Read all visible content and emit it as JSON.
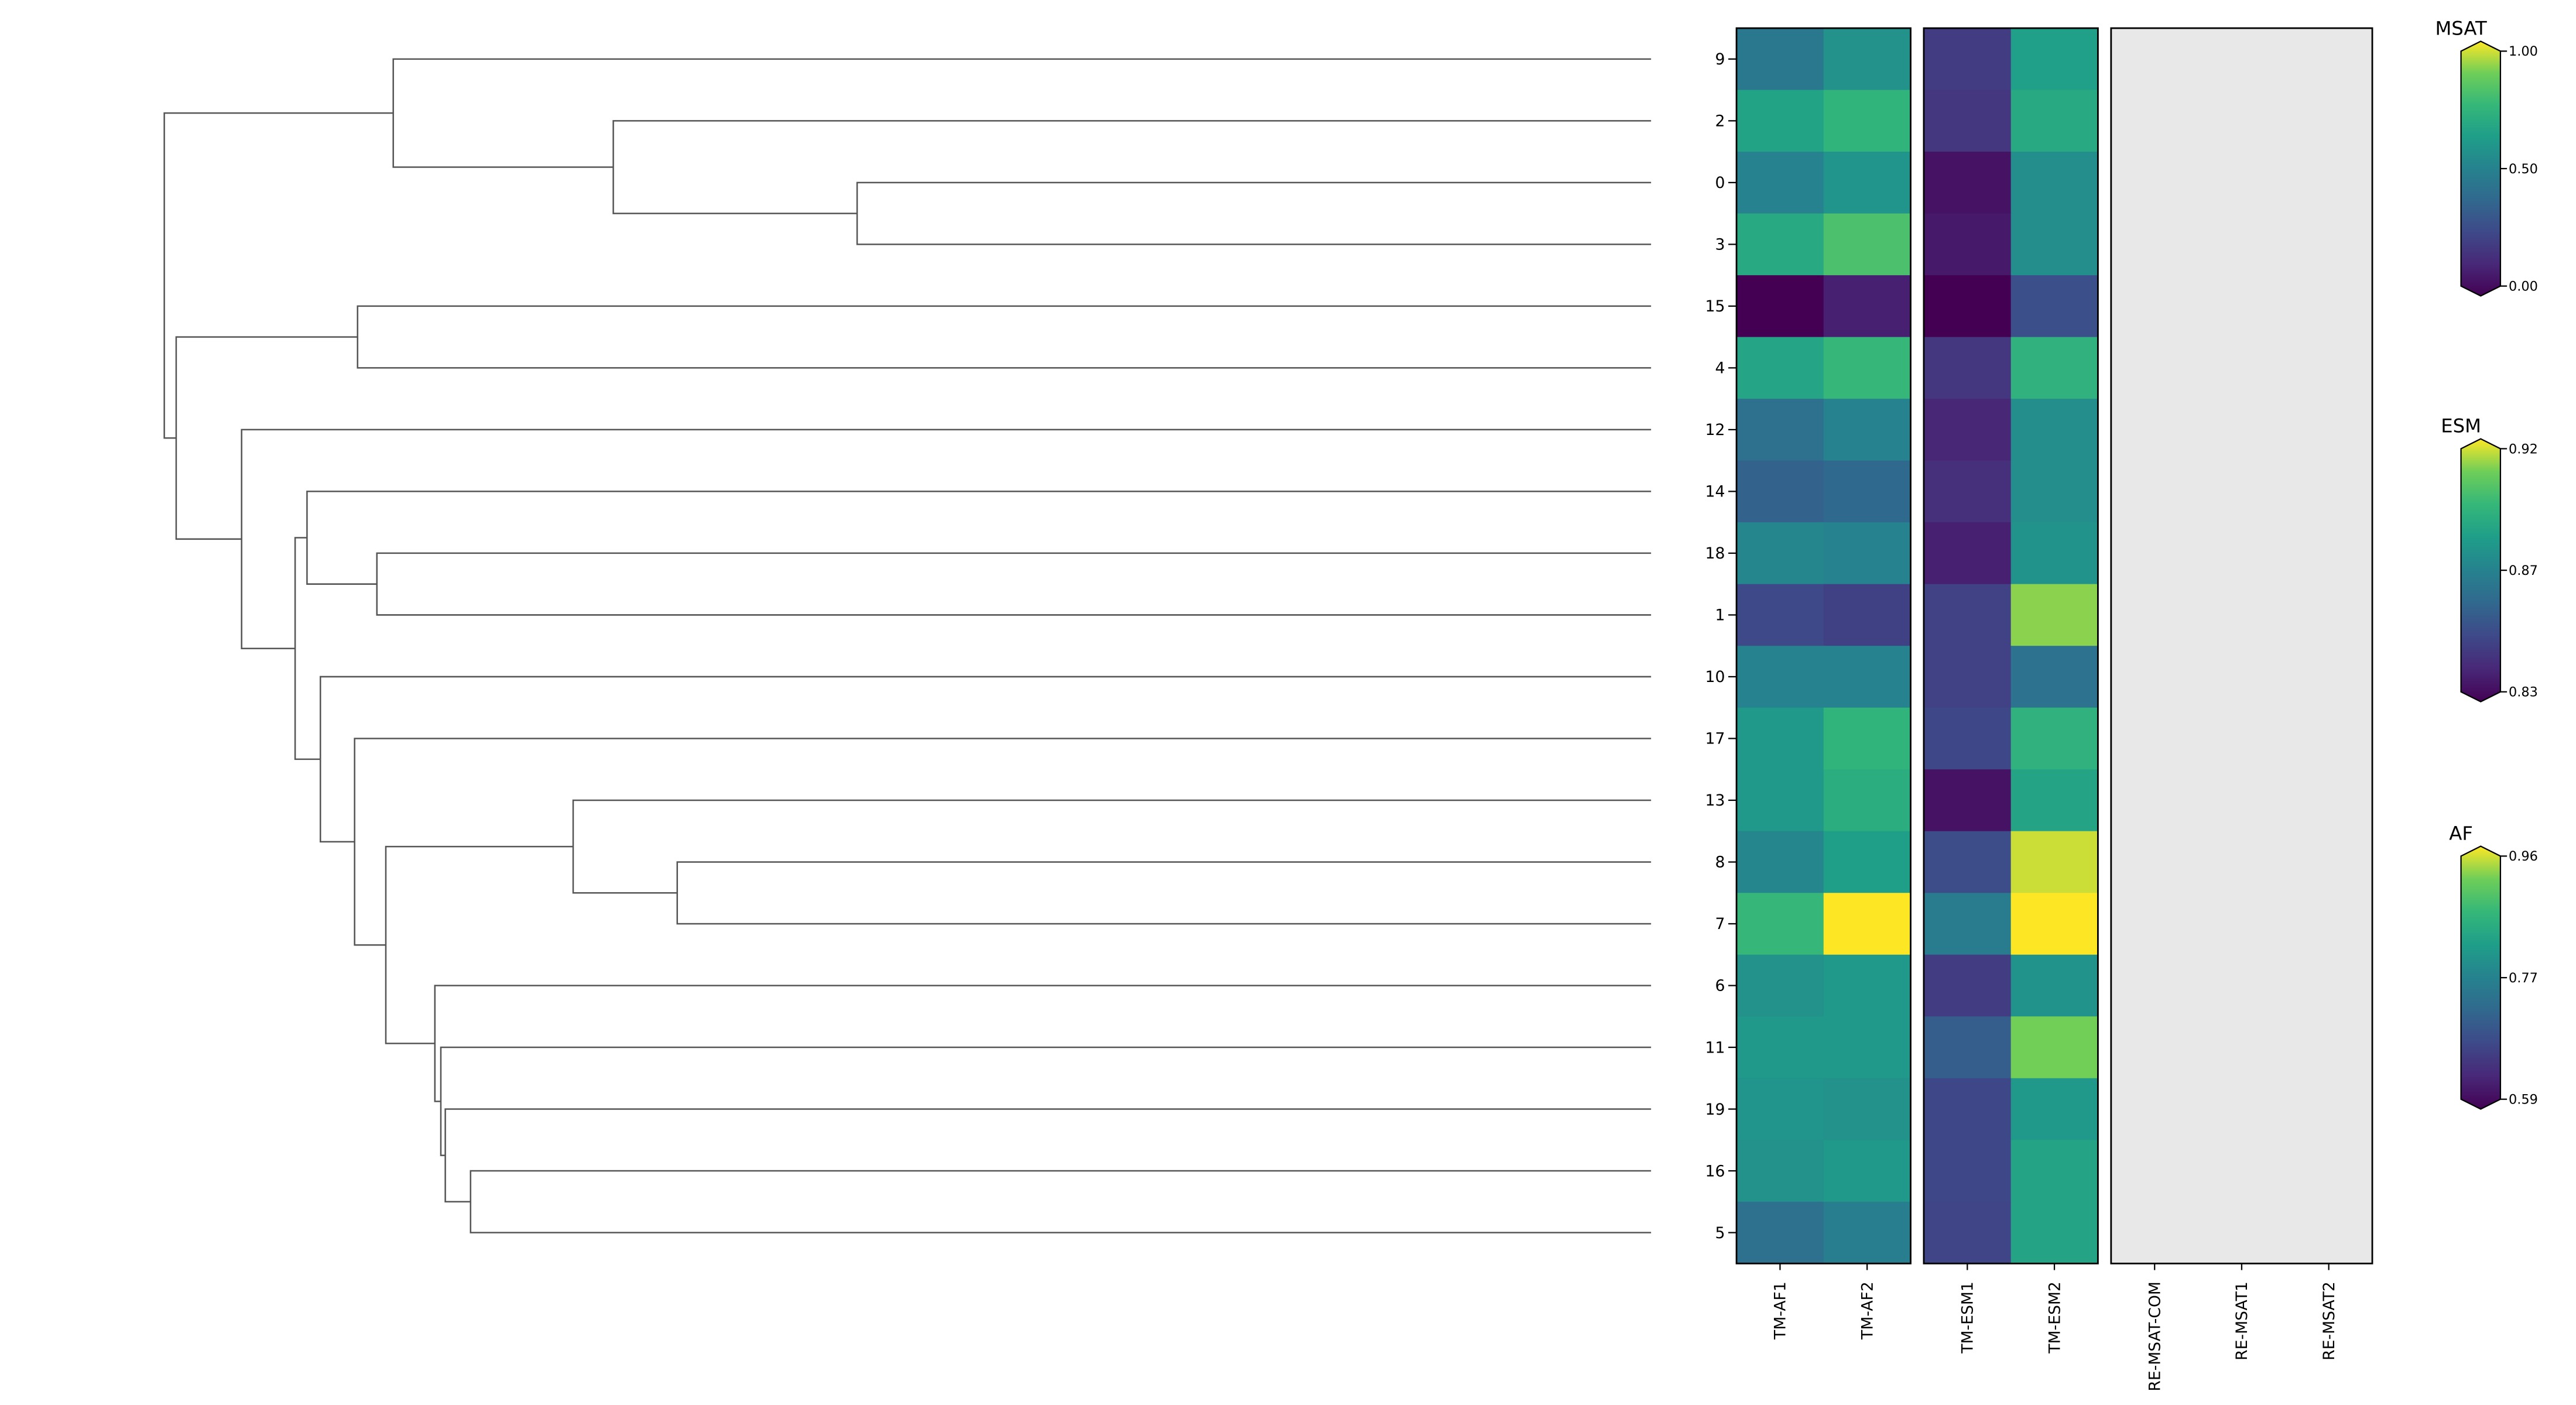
{
  "chart_data": {
    "type": "heatmap",
    "title": "",
    "row_labels": [
      "9",
      "2",
      "0",
      "3",
      "15",
      "4",
      "12",
      "14",
      "18",
      "1",
      "10",
      "17",
      "13",
      "8",
      "7",
      "6",
      "11",
      "19",
      "16",
      "5"
    ],
    "dendrogram": {
      "d": 1.0,
      "c": [
        {
          "d": 0.846,
          "c": [
            "9",
            {
              "d": 0.698,
              "c": [
                "2",
                {
                  "d": 0.534,
                  "c": [
                    "0",
                    "3"
                  ]
                }
              ]
            }
          ]
        },
        {
          "d": 0.992,
          "c": [
            {
              "d": 0.87,
              "c": [
                "15",
                "4"
              ]
            },
            {
              "d": 0.948,
              "c": [
                "12",
                {
                  "d": 0.912,
                  "c": [
                    {
                      "d": 0.904,
                      "c": [
                        "14",
                        {
                          "d": 0.857,
                          "c": [
                            "18",
                            "1"
                          ]
                        }
                      ]
                    },
                    {
                      "d": 0.895,
                      "c": [
                        "10",
                        {
                          "d": 0.872,
                          "c": [
                            "17",
                            {
                              "d": 0.851,
                              "c": [
                                {
                                  "d": 0.725,
                                  "c": [
                                    "13",
                                    {
                                      "d": 0.655,
                                      "c": [
                                        "8",
                                        "7"
                                      ]
                                    }
                                  ]
                                },
                                {
                                  "d": 0.818,
                                  "c": [
                                    "6",
                                    {
                                      "d": 0.814,
                                      "c": [
                                        "11",
                                        {
                                          "d": 0.811,
                                          "c": [
                                            "19",
                                            {
                                              "d": 0.794,
                                              "c": [
                                                "16",
                                                "5"
                                              ]
                                            }
                                          ]
                                        }
                                      ]
                                    }
                                  ]
                                }
                              ]
                            }
                          ]
                        }
                      ]
                    }
                  ]
                }
              ]
            }
          ]
        }
      ]
    },
    "panels": [
      {
        "name": "AF",
        "columns": [
          "TM-AF1",
          "TM-AF2"
        ],
        "range": [
          0.59,
          0.96
        ],
        "values": [
          [
            0.757,
            0.801
          ],
          [
            0.83,
            0.86
          ],
          [
            0.775,
            0.805
          ],
          [
            0.842,
            0.886
          ],
          [
            0.59,
            0.627
          ],
          [
            0.834,
            0.868
          ],
          [
            0.745,
            0.775
          ],
          [
            0.72,
            0.731
          ],
          [
            0.782,
            0.775
          ],
          [
            0.683,
            0.671
          ],
          [
            0.775,
            0.775
          ],
          [
            0.812,
            0.86
          ],
          [
            0.812,
            0.849
          ],
          [
            0.782,
            0.823
          ],
          [
            0.868,
            0.96
          ],
          [
            0.801,
            0.812
          ],
          [
            0.812,
            0.812
          ],
          [
            0.805,
            0.801
          ],
          [
            0.801,
            0.812
          ],
          [
            0.745,
            0.768
          ]
        ]
      },
      {
        "name": "ESM",
        "columns": [
          "TM-ESM1",
          "TM-ESM2"
        ],
        "range": [
          0.83,
          0.92
        ],
        "values": [
          [
            0.848,
            0.887
          ],
          [
            0.846,
            0.891
          ],
          [
            0.835,
            0.88
          ],
          [
            0.837,
            0.88
          ],
          [
            0.83,
            0.855
          ],
          [
            0.846,
            0.895
          ],
          [
            0.841,
            0.88
          ],
          [
            0.844,
            0.88
          ],
          [
            0.839,
            0.882
          ],
          [
            0.85,
            0.911
          ],
          [
            0.85,
            0.868
          ],
          [
            0.852,
            0.895
          ],
          [
            0.835,
            0.889
          ],
          [
            0.854,
            0.916
          ],
          [
            0.872,
            0.92
          ],
          [
            0.848,
            0.882
          ],
          [
            0.86,
            0.909
          ],
          [
            0.852,
            0.884
          ],
          [
            0.852,
            0.889
          ],
          [
            0.851,
            0.889
          ]
        ]
      },
      {
        "name": "MSAT",
        "columns": [
          "RE-MSAT-COM",
          "RE-MSAT1",
          "RE-MSAT2"
        ],
        "range": [
          0.0,
          1.0
        ],
        "values": null
      }
    ],
    "colorbars": [
      {
        "title": "MSAT",
        "ticks": [
          "1.00",
          "0.50",
          "0.00"
        ]
      },
      {
        "title": "ESM",
        "ticks": [
          "0.92",
          "0.87",
          "0.83"
        ]
      },
      {
        "title": "AF",
        "ticks": [
          "0.96",
          "0.77",
          "0.59"
        ]
      }
    ],
    "colormap": "viridis",
    "missing_color": "#e8e8e8"
  }
}
